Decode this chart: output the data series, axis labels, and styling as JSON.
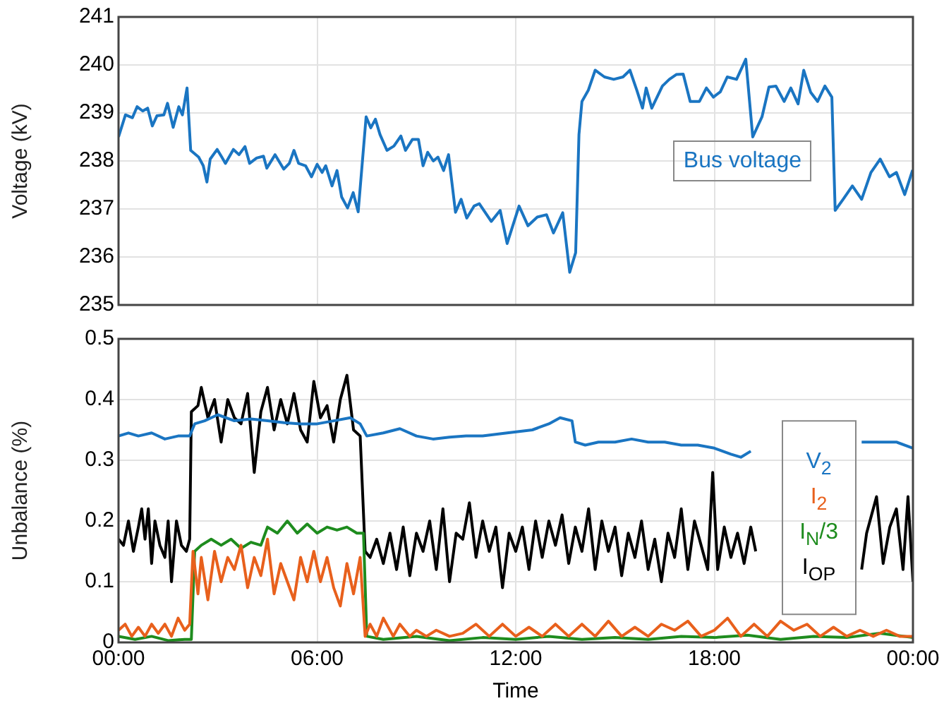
{
  "chart_data": [
    {
      "type": "line",
      "ylabel": "Voltage (kV)",
      "xlim": [
        0,
        24
      ],
      "xticks": [
        {
          "value": 0,
          "label": null
        },
        {
          "value": 6,
          "label": null
        },
        {
          "value": 12,
          "label": null
        },
        {
          "value": 18,
          "label": null
        },
        {
          "value": 24,
          "label": null
        }
      ],
      "ylim": [
        235,
        241
      ],
      "yticks": [
        235,
        236,
        237,
        238,
        239,
        240,
        241
      ],
      "tick_labels": "y",
      "grid": true,
      "legend": "right",
      "series": [
        {
          "name": "Bus voltage",
          "color": "#1a75c2",
          "x": [
            0,
            0.21,
            0.42,
            0.56,
            0.73,
            0.88,
            1.02,
            1.16,
            1.37,
            1.48,
            1.65,
            1.82,
            1.93,
            2.07,
            2.18,
            2.42,
            2.56,
            2.67,
            2.77,
            2.98,
            3.12,
            3.23,
            3.47,
            3.64,
            3.82,
            3.96,
            4.17,
            4.38,
            4.48,
            4.73,
            4.99,
            5.16,
            5.3,
            5.44,
            5.65,
            5.83,
            6,
            6.15,
            6.26,
            6.45,
            6.6,
            6.74,
            6.92,
            7.09,
            7.24,
            7.48,
            7.62,
            7.76,
            7.9,
            8.11,
            8.32,
            8.53,
            8.67,
            8.88,
            9.06,
            9.2,
            9.34,
            9.51,
            9.65,
            9.82,
            9.97,
            10.18,
            10.35,
            10.52,
            10.74,
            10.9,
            11.26,
            11.53,
            11.74,
            12.1,
            12.37,
            12.65,
            12.93,
            13.14,
            13.42,
            13.63,
            13.81,
            13.91,
            14,
            14.19,
            14.4,
            14.68,
            14.96,
            15.24,
            15.45,
            15.66,
            15.83,
            15.94,
            16.11,
            16.43,
            16.64,
            16.85,
            17.06,
            17.27,
            17.55,
            17.76,
            17.97,
            18.18,
            18.39,
            18.67,
            18.95,
            19.16,
            19.44,
            19.65,
            19.86,
            20.11,
            20.31,
            20.53,
            20.7,
            20.91,
            21.12,
            21.34,
            21.55,
            21.65,
            21.89,
            22.17,
            22.45,
            22.73,
            23.01,
            23.29,
            23.5,
            23.75,
            23.99
          ],
          "values": [
            238.5,
            238.96,
            238.9,
            239.13,
            239.04,
            239.1,
            238.73,
            238.94,
            238.96,
            239.2,
            238.7,
            239.13,
            238.96,
            239.52,
            238.22,
            238.08,
            237.9,
            237.56,
            238.04,
            238.24,
            238.08,
            237.95,
            238.24,
            238.13,
            238.3,
            237.95,
            238.06,
            238.1,
            237.85,
            238.13,
            237.83,
            237.95,
            238.22,
            237.95,
            237.9,
            237.67,
            237.93,
            237.76,
            237.9,
            237.48,
            237.8,
            237.25,
            237.02,
            237.34,
            236.94,
            238.92,
            238.69,
            238.87,
            238.55,
            238.22,
            238.31,
            238.52,
            238.22,
            238.45,
            238.45,
            237.9,
            238.18,
            238,
            238.08,
            237.8,
            238.13,
            236.93,
            237.2,
            236.81,
            237.06,
            237.11,
            236.74,
            236.97,
            236.28,
            237.06,
            236.65,
            236.83,
            236.88,
            236.5,
            236.92,
            235.68,
            236.09,
            238.55,
            239.24,
            239.47,
            239.89,
            239.75,
            239.7,
            239.75,
            239.89,
            239.47,
            239.1,
            239.52,
            239.1,
            239.56,
            239.7,
            239.8,
            239.81,
            239.24,
            239.24,
            239.52,
            239.33,
            239.44,
            239.75,
            239.7,
            240.12,
            238.5,
            238.92,
            239.54,
            239.56,
            239.24,
            239.52,
            239.19,
            239.89,
            239.43,
            239.24,
            239.56,
            239.33,
            236.97,
            237.2,
            237.48,
            237.2,
            237.76,
            238.04,
            237.67,
            237.76,
            237.3,
            237.81
          ]
        }
      ]
    },
    {
      "type": "line",
      "xlabel": "Time",
      "ylabel": "Unbalance (%)",
      "xlim": [
        0,
        24
      ],
      "xticks": [
        {
          "value": 0,
          "label": "00:00"
        },
        {
          "value": 6,
          "label": "06:00"
        },
        {
          "value": 12,
          "label": "12:00"
        },
        {
          "value": 18,
          "label": "18:00"
        },
        {
          "value": 24,
          "label": "00:00"
        }
      ],
      "ylim": [
        0,
        0.5
      ],
      "yticks": [
        0,
        0.1,
        0.2,
        0.3,
        0.4,
        0.5
      ],
      "grid": true,
      "legend": "right",
      "series": [
        {
          "name": "V$_{2}$",
          "color": "#1a75c2",
          "x": [
            0,
            0.3,
            0.6,
            1,
            1.4,
            1.8,
            2.15,
            2.3,
            2.6,
            3,
            3.5,
            4,
            4.5,
            5,
            5.5,
            6,
            6.5,
            7,
            7.3,
            7.5,
            8,
            8.5,
            9,
            9.5,
            10,
            10.5,
            11,
            11.74,
            12.5,
            13,
            13.34,
            13.7,
            13.8,
            14.1,
            14.5,
            15,
            15.5,
            16,
            16.5,
            17,
            17.5,
            18,
            18.5,
            18.8,
            19.1,
            20.8,
            22.45,
            23,
            23.5,
            24
          ],
          "values": [
            0.34,
            0.345,
            0.34,
            0.345,
            0.335,
            0.34,
            0.34,
            0.36,
            0.365,
            0.375,
            0.365,
            0.368,
            0.365,
            0.362,
            0.36,
            0.36,
            0.365,
            0.37,
            0.36,
            0.34,
            0.345,
            0.352,
            0.34,
            0.335,
            0.338,
            0.34,
            0.34,
            0.345,
            0.35,
            0.36,
            0.37,
            0.365,
            0.33,
            0.325,
            0.33,
            0.33,
            0.335,
            0.33,
            0.33,
            0.325,
            0.325,
            0.32,
            0.31,
            0.305,
            0.315,
            null,
            0.33,
            0.33,
            0.33,
            0.32
          ]
        },
        {
          "name": "I$_{2}$",
          "color": "#e8601c",
          "x": [
            0,
            0.2,
            0.4,
            0.6,
            0.8,
            1,
            1.2,
            1.4,
            1.6,
            1.8,
            2,
            2.15,
            2.25,
            2.4,
            2.5,
            2.7,
            2.9,
            3.1,
            3.3,
            3.5,
            3.7,
            3.9,
            4.1,
            4.3,
            4.5,
            4.7,
            4.9,
            5.1,
            5.3,
            5.5,
            5.7,
            5.9,
            6.1,
            6.3,
            6.5,
            6.7,
            6.9,
            7.1,
            7.3,
            7.45,
            7.6,
            7.8,
            8,
            8.3,
            8.5,
            8.8,
            9,
            9.3,
            9.6,
            10,
            10.4,
            10.8,
            11.2,
            11.6,
            12,
            12.4,
            12.8,
            13.2,
            13.6,
            14,
            14.4,
            14.8,
            15.2,
            15.6,
            16,
            16.4,
            16.8,
            17.2,
            17.6,
            18,
            18.4,
            18.8,
            19.2,
            19.6,
            20,
            20.4,
            20.8,
            21.2,
            21.6,
            22,
            22.4,
            22.8,
            23.2,
            23.6,
            24
          ],
          "values": [
            0.02,
            0.03,
            0.01,
            0.025,
            0.01,
            0.03,
            0.015,
            0.03,
            0.01,
            0.04,
            0.02,
            0.03,
            0.15,
            0.08,
            0.14,
            0.07,
            0.15,
            0.1,
            0.14,
            0.12,
            0.16,
            0.09,
            0.14,
            0.11,
            0.17,
            0.08,
            0.13,
            0.1,
            0.07,
            0.14,
            0.1,
            0.15,
            0.1,
            0.14,
            0.09,
            0.06,
            0.13,
            0.08,
            0.14,
            0.01,
            0.03,
            0.01,
            0.04,
            0.01,
            0.03,
            0.01,
            0.02,
            0.01,
            0.02,
            0.01,
            0.015,
            0.03,
            0.01,
            0.03,
            0.01,
            0.025,
            0.01,
            0.03,
            0.01,
            0.03,
            0.01,
            0.035,
            0.01,
            0.025,
            0.01,
            0.03,
            0.02,
            0.035,
            0.01,
            0.02,
            0.04,
            0.01,
            0.03,
            0.01,
            0.035,
            0.02,
            0.03,
            0.01,
            0.025,
            0.01,
            0.02,
            0.01,
            0.02,
            0.01,
            0.01
          ]
        },
        {
          "name": "I$_{N}$/3",
          "color": "#1e8c1e",
          "x": [
            0,
            0.5,
            1,
            1.5,
            2,
            2.2,
            2.3,
            2.5,
            2.8,
            3.1,
            3.4,
            3.7,
            4,
            4.3,
            4.5,
            4.8,
            5.1,
            5.4,
            5.7,
            6,
            6.3,
            6.6,
            6.9,
            7.2,
            7.4,
            7.5,
            8,
            9,
            10,
            11,
            12,
            13,
            14,
            15,
            16,
            17,
            18,
            19,
            20,
            21,
            22,
            23,
            24
          ],
          "values": [
            0.01,
            0.005,
            0.01,
            0.003,
            0.005,
            0.005,
            0.15,
            0.16,
            0.17,
            0.16,
            0.17,
            0.155,
            0.165,
            0.16,
            0.19,
            0.18,
            0.2,
            0.18,
            0.195,
            0.18,
            0.19,
            0.185,
            0.19,
            0.18,
            0.18,
            0.01,
            0.005,
            0.01,
            0.003,
            0.008,
            0.005,
            0.01,
            0.005,
            0.008,
            0.005,
            0.01,
            0.008,
            0.012,
            0.005,
            0.01,
            0.008,
            0.015,
            0.008
          ]
        },
        {
          "name": "I$_{OP}$",
          "color": "#000000",
          "x": [
            0,
            0.15,
            0.3,
            0.45,
            0.6,
            0.7,
            0.8,
            0.9,
            1,
            1.1,
            1.25,
            1.4,
            1.5,
            1.6,
            1.75,
            1.9,
            2.05,
            2.15,
            2.2,
            2.4,
            2.5,
            2.7,
            2.9,
            3.1,
            3.3,
            3.5,
            3.7,
            3.9,
            4.1,
            4.3,
            4.5,
            4.7,
            4.9,
            5.1,
            5.3,
            5.5,
            5.7,
            5.9,
            6.1,
            6.3,
            6.5,
            6.7,
            6.9,
            7.1,
            7.3,
            7.45,
            7.6,
            7.8,
            8,
            8.2,
            8.4,
            8.6,
            8.8,
            9,
            9.2,
            9.4,
            9.6,
            9.8,
            10,
            10.2,
            10.4,
            10.6,
            10.8,
            11,
            11.2,
            11.4,
            11.6,
            11.8,
            12,
            12.2,
            12.4,
            12.6,
            12.8,
            13,
            13.2,
            13.4,
            13.6,
            13.8,
            14,
            14.2,
            14.4,
            14.6,
            14.8,
            15,
            15.2,
            15.4,
            15.6,
            15.8,
            16,
            16.2,
            16.4,
            16.6,
            16.8,
            17,
            17.2,
            17.4,
            17.6,
            17.8,
            17.95,
            18.1,
            18.3,
            18.5,
            18.7,
            18.9,
            19.1,
            19.25,
            20.8,
            22.45,
            22.6,
            22.9,
            23.1,
            23.3,
            23.5,
            23.7,
            23.85,
            24
          ],
          "values": [
            0.17,
            0.16,
            0.2,
            0.15,
            0.19,
            0.22,
            0.17,
            0.22,
            0.13,
            0.2,
            0.16,
            0.14,
            0.2,
            0.1,
            0.2,
            0.16,
            0.15,
            0.17,
            0.38,
            0.39,
            0.42,
            0.37,
            0.4,
            0.33,
            0.4,
            0.37,
            0.36,
            0.41,
            0.28,
            0.38,
            0.42,
            0.35,
            0.4,
            0.36,
            0.41,
            0.35,
            0.33,
            0.43,
            0.37,
            0.39,
            0.33,
            0.4,
            0.44,
            0.35,
            0.34,
            0.15,
            0.14,
            0.17,
            0.13,
            0.18,
            0.12,
            0.19,
            0.11,
            0.18,
            0.15,
            0.2,
            0.12,
            0.22,
            0.1,
            0.18,
            0.17,
            0.23,
            0.14,
            0.2,
            0.15,
            0.19,
            0.09,
            0.18,
            0.15,
            0.19,
            0.12,
            0.2,
            0.14,
            0.2,
            0.16,
            0.21,
            0.13,
            0.19,
            0.15,
            0.22,
            0.12,
            0.2,
            0.15,
            0.19,
            0.11,
            0.18,
            0.14,
            0.2,
            0.12,
            0.17,
            0.1,
            0.18,
            0.14,
            0.22,
            0.12,
            0.2,
            0.16,
            0.12,
            0.28,
            0.12,
            0.19,
            0.14,
            0.18,
            0.13,
            0.19,
            0.15,
            null,
            0.12,
            0.18,
            0.24,
            0.13,
            0.19,
            0.22,
            0.12,
            0.24,
            0.1
          ]
        }
      ]
    }
  ]
}
